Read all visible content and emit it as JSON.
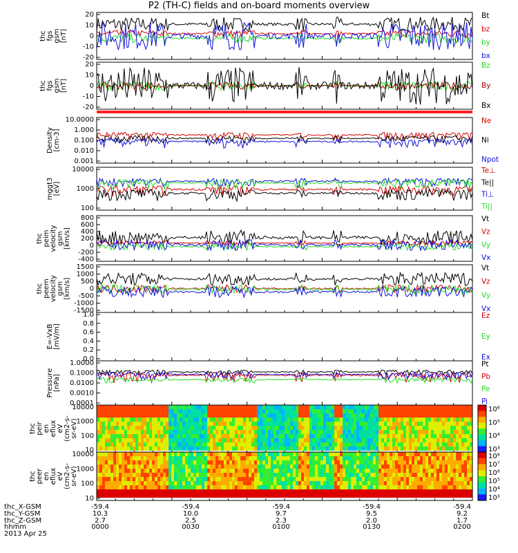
{
  "title": "P2 (TH-C) fields and on-board moments overview",
  "date_label": "2013 Apr 25",
  "footer": {
    "row_labels": [
      "thc_X-GSM",
      "thc_Y-GSM",
      "thc_Z-GSM",
      "hhmm"
    ],
    "columns": [
      {
        "x": "-59.4",
        "y": "10.3",
        "z": "2.7",
        "t": "0000"
      },
      {
        "x": "-59.4",
        "y": "10.0",
        "z": "2.5",
        "t": "0030"
      },
      {
        "x": "-59.4",
        "y": "9.7",
        "z": "2.3",
        "t": "0100"
      },
      {
        "x": "-59.4",
        "y": "9.5",
        "z": "2.0",
        "t": "0130"
      },
      {
        "x": "-59.4",
        "y": "9.2",
        "z": "1.7",
        "t": "0200"
      }
    ]
  },
  "colors": {
    "black": "#000000",
    "red": "#d40000",
    "green": "#22dd22",
    "blue": "#1010dd",
    "darkred": "#a00000"
  },
  "chart_data": [
    {
      "type": "line",
      "ylabel": "thc\nfgs\ngsm\n[nT]",
      "yticks": [
        "20",
        "10",
        "0",
        "-10",
        "-20"
      ],
      "ylim": [
        -20,
        20
      ],
      "series": [
        {
          "name": "Bt",
          "color": "black",
          "level": 10,
          "amp": 6
        },
        {
          "name": "bz",
          "color": "red",
          "level": 2,
          "amp": 3
        },
        {
          "name": "by",
          "color": "green",
          "level": -2,
          "amp": 4
        },
        {
          "name": "bx",
          "color": "blue",
          "level": 0,
          "amp": 12
        }
      ]
    },
    {
      "type": "line",
      "ylabel": "thc\nfgs\ngsm\n[nT]",
      "yticks": [
        "20",
        "10",
        "0",
        "-10",
        "-20"
      ],
      "ylim": [
        -20,
        20
      ],
      "series": [
        {
          "name": "Bz",
          "color": "green",
          "level": 0,
          "amp": 4
        },
        {
          "name": "By",
          "color": "darkred",
          "level": 0,
          "amp": 3
        },
        {
          "name": "Bx",
          "color": "black",
          "level": 0,
          "amp": 16
        }
      ]
    },
    {
      "type": "line",
      "ylabel": "Density\n[cm-3]",
      "yticks": [
        "10.0000",
        "1.000",
        "0.100",
        "0.010",
        "0.001"
      ],
      "ylim": [
        0.001,
        10
      ],
      "log": true,
      "series": [
        {
          "name": "Ne",
          "color": "red",
          "level": 0.3,
          "amp": 0.2
        },
        {
          "name": "Ni",
          "color": "black",
          "level": 0.15,
          "amp": 0.1
        },
        {
          "name": "Npot",
          "color": "blue",
          "level": 0.08,
          "amp": 0.06
        }
      ]
    },
    {
      "type": "line",
      "ylabel": "mggt3\n[eV]",
      "yticks": [
        "10000",
        "1000",
        "100"
      ],
      "ylim": [
        30,
        10000
      ],
      "log": true,
      "series": [
        {
          "name": "Te⊥",
          "color": "red",
          "level": 500,
          "amp": 300
        },
        {
          "name": "Te||",
          "color": "black",
          "level": 300,
          "amp": 200
        },
        {
          "name": "Ti⊥",
          "color": "blue",
          "level": 1500,
          "amp": 800
        },
        {
          "name": "Ti||",
          "color": "green",
          "level": 1200,
          "amp": 700
        }
      ]
    },
    {
      "type": "line",
      "ylabel": "thc\npeim\nvelocity\ngsm\n[km/s]",
      "yticks": [
        "800",
        "600",
        "400",
        "200",
        "0",
        "-200",
        "-400"
      ],
      "ylim": [
        -450,
        800
      ],
      "series": [
        {
          "name": "Vt",
          "color": "black",
          "level": 200,
          "amp": 200
        },
        {
          "name": "Vz",
          "color": "red",
          "level": 50,
          "amp": 60
        },
        {
          "name": "Vy",
          "color": "green",
          "level": -50,
          "amp": 100
        },
        {
          "name": "Vx",
          "color": "blue",
          "level": 0,
          "amp": 150
        }
      ]
    },
    {
      "type": "line",
      "ylabel": "thc\npeem\nvelocity\ngsm\n[km/s]",
      "yticks": [
        "1500",
        "1000",
        "500",
        "0",
        "-500",
        "-1000",
        "-1500"
      ],
      "ylim": [
        -1500,
        1500
      ],
      "series": [
        {
          "name": "Vt",
          "color": "black",
          "level": 600,
          "amp": 400
        },
        {
          "name": "Vz",
          "color": "red",
          "level": 0,
          "amp": 250
        },
        {
          "name": "Vy",
          "color": "green",
          "level": -50,
          "amp": 300
        },
        {
          "name": "Vx",
          "color": "blue",
          "level": -200,
          "amp": 350
        }
      ]
    },
    {
      "type": "line",
      "ylabel": "E=-VxB\n[mV/m]",
      "yticks": [
        "1.0",
        "0.8",
        "0.6",
        "0.4",
        "0.2",
        "0.0"
      ],
      "ylim": [
        0,
        1
      ],
      "series": [
        {
          "name": "Ez",
          "color": "red"
        },
        {
          "name": "Ey",
          "color": "green"
        },
        {
          "name": "Ex",
          "color": "blue"
        }
      ]
    },
    {
      "type": "line",
      "ylabel": "Pressure\n[nPa]",
      "yticks": [
        "1.0000",
        "0.1000",
        "0.0100",
        "0.0010",
        "0.0001"
      ],
      "ylim": [
        0.0001,
        1
      ],
      "log": true,
      "series": [
        {
          "name": "Pt",
          "color": "black",
          "level": 0.1,
          "amp": 0.05
        },
        {
          "name": "Pb",
          "color": "red",
          "level": 0.05,
          "amp": 0.04
        },
        {
          "name": "Pe",
          "color": "green",
          "level": 0.02,
          "amp": 0.01
        },
        {
          "name": "Pi",
          "color": "blue",
          "level": 0.06,
          "amp": 0.04
        }
      ]
    },
    {
      "type": "heatmap",
      "ylabel": "thc\npeir\nen\neflux\neV\n(cm2-s-\nsr-eV)",
      "yticks": [
        "10000",
        "1000",
        "100",
        "10"
      ],
      "colorbar_ticks": [
        "10⁶",
        "10⁵",
        "10⁴",
        "10³"
      ]
    },
    {
      "type": "heatmap",
      "ylabel": "thc\npeer\nen\neflux\neV\n(cm2-s-\nsr-eV)",
      "yticks": [
        "10000",
        "1000",
        "100",
        "10"
      ],
      "colorbar_ticks": [
        "10⁸",
        "10⁷",
        "10⁶",
        "10⁵",
        "10⁴",
        "10³"
      ]
    }
  ]
}
